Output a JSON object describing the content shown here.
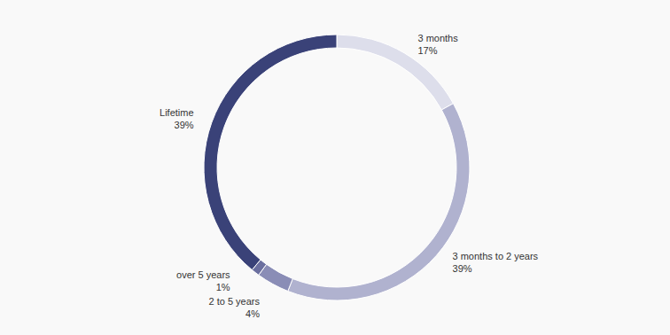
{
  "chart_data": {
    "type": "pie",
    "categories": [
      "3 months",
      "3 months to 2 years",
      "2 to 5 years",
      "over 5 years",
      "Lifetime"
    ],
    "values": [
      17,
      39,
      4,
      1,
      39
    ],
    "value_labels": [
      "17%",
      "39%",
      "4%",
      "1%",
      "39%"
    ],
    "colors": [
      "#dddeeb",
      "#b0b2cf",
      "#8a8db6",
      "#6b6f9f",
      "#3a4278"
    ],
    "data_labels": true
  }
}
